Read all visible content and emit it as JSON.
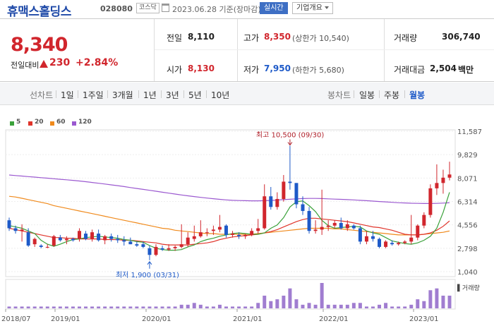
{
  "header": {
    "title": "휴맥스홀딩스",
    "code": "028080",
    "market": "코스닥",
    "date": "2023.06.28 기준(장마감)",
    "realtime_label": "실시간",
    "overview_label": "기업개요"
  },
  "price": {
    "current": "8,340",
    "change_label": "전일대비",
    "change": "230",
    "change_pct": "+2.84%"
  },
  "stats": {
    "prev_close_label": "전일",
    "prev_close": "8,110",
    "high_label": "고가",
    "high": "8,350",
    "upper_limit": "(상한가 10,540)",
    "volume_label": "거래량",
    "volume": "306,740",
    "open_label": "시가",
    "open": "8,130",
    "low_label": "저가",
    "low": "7,950",
    "lower_limit": "(하한가 5,680)",
    "amount_label": "거래대금",
    "amount": "2,504",
    "amount_unit": "백만"
  },
  "toolbar": {
    "line_chart_label": "선차트",
    "periods": [
      "1일",
      "1주일",
      "3개월",
      "1년",
      "3년",
      "5년",
      "10년"
    ],
    "candle_label": "봉차트",
    "candle_periods": [
      "일봉",
      "주봉",
      "월봉"
    ],
    "candle_selected": "월봉"
  },
  "colors": {
    "up": "#d1262d",
    "down": "#1e5ac8",
    "ma5": "#3aa13a",
    "ma20": "#e0352b",
    "ma60": "#f08a1c",
    "ma120": "#9b59d0",
    "volume": "#a07dd0"
  },
  "chart_data": {
    "type": "candlestick",
    "legend": [
      "5",
      "20",
      "60",
      "120"
    ],
    "y_ticks": [
      "11,587",
      "9,829",
      "8,071",
      "6,314",
      "4,556",
      "2,798",
      "1,040"
    ],
    "x_ticks": [
      "2018/07",
      "2019/01",
      "2020/01",
      "2021/01",
      "2022/01",
      "2023/01"
    ],
    "volume_label": "거래량",
    "high_annotation": "최고 10,500 (09/30)",
    "low_annotation": "최저 1,900 (03/31)",
    "candles": [
      {
        "o": 4900,
        "h": 5100,
        "l": 4100,
        "c": 4300
      },
      {
        "o": 4300,
        "h": 4500,
        "l": 3900,
        "c": 4100
      },
      {
        "o": 4100,
        "h": 4600,
        "l": 3300,
        "c": 4200
      },
      {
        "o": 4000,
        "h": 4300,
        "l": 2900,
        "c": 3000
      },
      {
        "o": 3100,
        "h": 3600,
        "l": 2900,
        "c": 3500
      },
      {
        "o": 3000,
        "h": 3100,
        "l": 2800,
        "c": 2900
      },
      {
        "o": 2900,
        "h": 3100,
        "l": 2800,
        "c": 2900
      },
      {
        "o": 3000,
        "h": 3800,
        "l": 2900,
        "c": 3700
      },
      {
        "o": 3600,
        "h": 3800,
        "l": 3300,
        "c": 3400
      },
      {
        "o": 3400,
        "h": 3700,
        "l": 3100,
        "c": 3500
      },
      {
        "o": 3500,
        "h": 3600,
        "l": 3300,
        "c": 3400
      },
      {
        "o": 3500,
        "h": 4300,
        "l": 3300,
        "c": 4100
      },
      {
        "o": 3900,
        "h": 4100,
        "l": 3400,
        "c": 3500
      },
      {
        "o": 3500,
        "h": 4200,
        "l": 3300,
        "c": 4000
      },
      {
        "o": 3900,
        "h": 4200,
        "l": 3300,
        "c": 3400
      },
      {
        "o": 3400,
        "h": 3800,
        "l": 3100,
        "c": 3700
      },
      {
        "o": 3700,
        "h": 3900,
        "l": 3300,
        "c": 3500
      },
      {
        "o": 3500,
        "h": 3800,
        "l": 3200,
        "c": 3400
      },
      {
        "o": 3400,
        "h": 3700,
        "l": 3000,
        "c": 3300
      },
      {
        "o": 3300,
        "h": 3600,
        "l": 3100,
        "c": 3100
      },
      {
        "o": 3100,
        "h": 3300,
        "l": 2900,
        "c": 3000
      },
      {
        "o": 3100,
        "h": 3300,
        "l": 2800,
        "c": 2900
      },
      {
        "o": 2800,
        "h": 3000,
        "l": 1900,
        "c": 2300
      },
      {
        "o": 2300,
        "h": 3100,
        "l": 2200,
        "c": 2900
      },
      {
        "o": 2800,
        "h": 3000,
        "l": 2600,
        "c": 2700
      },
      {
        "o": 2700,
        "h": 3100,
        "l": 2600,
        "c": 2800
      },
      {
        "o": 2800,
        "h": 3000,
        "l": 2600,
        "c": 2900
      },
      {
        "o": 2900,
        "h": 4600,
        "l": 2800,
        "c": 3100
      },
      {
        "o": 3100,
        "h": 4000,
        "l": 2900,
        "c": 3600
      },
      {
        "o": 3500,
        "h": 4500,
        "l": 3300,
        "c": 3700
      },
      {
        "o": 3700,
        "h": 4900,
        "l": 3600,
        "c": 4000
      },
      {
        "o": 4000,
        "h": 4300,
        "l": 3700,
        "c": 4000
      },
      {
        "o": 4100,
        "h": 4500,
        "l": 3800,
        "c": 4200
      },
      {
        "o": 4200,
        "h": 5300,
        "l": 4000,
        "c": 4400
      },
      {
        "o": 4500,
        "h": 4600,
        "l": 3600,
        "c": 3800
      },
      {
        "o": 3800,
        "h": 4100,
        "l": 3600,
        "c": 3900
      },
      {
        "o": 3800,
        "h": 4000,
        "l": 3500,
        "c": 3700
      },
      {
        "o": 3700,
        "h": 3900,
        "l": 3500,
        "c": 3800
      },
      {
        "o": 3800,
        "h": 4300,
        "l": 3700,
        "c": 4100
      },
      {
        "o": 4100,
        "h": 5000,
        "l": 3900,
        "c": 4300
      },
      {
        "o": 4300,
        "h": 7600,
        "l": 4200,
        "c": 6700
      },
      {
        "o": 6700,
        "h": 7400,
        "l": 5700,
        "c": 5900
      },
      {
        "o": 5900,
        "h": 7000,
        "l": 5700,
        "c": 6500
      },
      {
        "o": 6500,
        "h": 8300,
        "l": 6300,
        "c": 7800
      },
      {
        "o": 7800,
        "h": 10500,
        "l": 7200,
        "c": 7700
      },
      {
        "o": 7700,
        "h": 7700,
        "l": 5800,
        "c": 6100
      },
      {
        "o": 6100,
        "h": 6700,
        "l": 5300,
        "c": 5600
      },
      {
        "o": 5600,
        "h": 5900,
        "l": 3900,
        "c": 4100
      },
      {
        "o": 4100,
        "h": 4900,
        "l": 3900,
        "c": 4200
      },
      {
        "o": 4200,
        "h": 7200,
        "l": 3800,
        "c": 4400
      },
      {
        "o": 4400,
        "h": 4900,
        "l": 4100,
        "c": 4500
      },
      {
        "o": 4500,
        "h": 4900,
        "l": 4300,
        "c": 4700
      },
      {
        "o": 4700,
        "h": 5100,
        "l": 4200,
        "c": 4300
      },
      {
        "o": 4300,
        "h": 4900,
        "l": 4100,
        "c": 4600
      },
      {
        "o": 4500,
        "h": 4600,
        "l": 4200,
        "c": 4300
      },
      {
        "o": 4300,
        "h": 4500,
        "l": 3100,
        "c": 3300
      },
      {
        "o": 3300,
        "h": 4100,
        "l": 3100,
        "c": 3700
      },
      {
        "o": 3700,
        "h": 4100,
        "l": 3300,
        "c": 3500
      },
      {
        "o": 3500,
        "h": 3600,
        "l": 2800,
        "c": 2900
      },
      {
        "o": 2900,
        "h": 3400,
        "l": 2800,
        "c": 3300
      },
      {
        "o": 3200,
        "h": 3400,
        "l": 3000,
        "c": 3100
      },
      {
        "o": 3100,
        "h": 3300,
        "l": 3000,
        "c": 3200
      },
      {
        "o": 3200,
        "h": 3400,
        "l": 3100,
        "c": 3300
      },
      {
        "o": 3300,
        "h": 5300,
        "l": 3100,
        "c": 3600
      },
      {
        "o": 3600,
        "h": 4600,
        "l": 3400,
        "c": 4500
      },
      {
        "o": 4500,
        "h": 5500,
        "l": 4300,
        "c": 5300
      },
      {
        "o": 5300,
        "h": 7600,
        "l": 5100,
        "c": 7300
      },
      {
        "o": 7300,
        "h": 9100,
        "l": 6800,
        "c": 7700
      },
      {
        "o": 7700,
        "h": 8700,
        "l": 6900,
        "c": 8100
      },
      {
        "o": 8100,
        "h": 9300,
        "l": 7900,
        "c": 8340
      }
    ],
    "volume": [
      1,
      1,
      1,
      1,
      1,
      1,
      1,
      1,
      1,
      1,
      1,
      1,
      1,
      1,
      1,
      1,
      1,
      1,
      1,
      1,
      1,
      1,
      1,
      1,
      1,
      1,
      1,
      2,
      2,
      3,
      2,
      1,
      1,
      2,
      1,
      1,
      1,
      1,
      1,
      3,
      7,
      4,
      5,
      7,
      11,
      5,
      2,
      3,
      2,
      14,
      2,
      2,
      2,
      2,
      3,
      3,
      1,
      1,
      2,
      3,
      1,
      1,
      1,
      2,
      5,
      4,
      10,
      11,
      7,
      7
    ],
    "ma5": [
      4500,
      4400,
      4300,
      4100,
      3900,
      3400,
      3100,
      2950,
      3100,
      3300,
      3450,
      3500,
      3600,
      3650,
      3700,
      3650,
      3600,
      3550,
      3450,
      3400,
      3300,
      3250,
      3000,
      2800,
      2700,
      2650,
      2650,
      2700,
      2900,
      3050,
      3300,
      3450,
      3550,
      3700,
      3800,
      3900,
      3950,
      3900,
      3850,
      3850,
      3950,
      4300,
      4550,
      5100,
      5900,
      6300,
      6350,
      6000,
      5550,
      4900,
      4500,
      4300,
      4350,
      4400,
      4450,
      4400,
      4100,
      3950,
      3850,
      3600,
      3350,
      3250,
      3150,
      3100,
      3200,
      3400,
      3700,
      4300,
      5500,
      7000
    ],
    "ma20": [
      4300,
      4200,
      4100,
      4000,
      3900,
      3800,
      3700,
      3600,
      3600,
      3550,
      3550,
      3500,
      3500,
      3500,
      3500,
      3450,
      3450,
      3450,
      3400,
      3400,
      3350,
      3300,
      3250,
      3200,
      3100,
      3050,
      3050,
      3050,
      3050,
      3100,
      3150,
      3200,
      3300,
      3450,
      3550,
      3650,
      3700,
      3750,
      3800,
      3850,
      3950,
      4050,
      4200,
      4400,
      4600,
      4800,
      4950,
      5050,
      5050,
      5000,
      4950,
      4900,
      4850,
      4800,
      4700,
      4600,
      4500,
      4400,
      4350,
      4250,
      4150,
      4000,
      3850,
      3800,
      3800,
      3850,
      3950,
      4150,
      4450,
      4850
    ],
    "ma60": [
      6700,
      6650,
      6550,
      6450,
      6350,
      6250,
      6150,
      6000,
      5900,
      5800,
      5700,
      5600,
      5500,
      5400,
      5300,
      5200,
      5100,
      5000,
      4900,
      4800,
      4700,
      4600,
      4500,
      4400,
      4300,
      4250,
      4150,
      4100,
      4050,
      4000,
      3950,
      3900,
      3900,
      3850,
      3850,
      3850,
      3850,
      3850,
      3850,
      3900,
      3950,
      4000,
      4050,
      4100,
      4150,
      4200,
      4250,
      4300,
      4300,
      4300,
      4300,
      4250,
      4250,
      4200,
      4150,
      4100,
      4050,
      4000,
      3950,
      3900,
      3850,
      3800,
      3800,
      3800,
      3800,
      3850,
      3900,
      3950,
      4000,
      4100
    ],
    "ma120": [
      8300,
      8260,
      8220,
      8180,
      8140,
      8100,
      8060,
      8020,
      7980,
      7940,
      7900,
      7850,
      7800,
      7740,
      7680,
      7620,
      7560,
      7500,
      7430,
      7360,
      7290,
      7220,
      7150,
      7080,
      7010,
      6940,
      6870,
      6800,
      6740,
      6680,
      6620,
      6570,
      6520,
      6470,
      6430,
      6400,
      6380,
      6370,
      6360,
      6360,
      6370,
      6390,
      6420,
      6450,
      6480,
      6510,
      6530,
      6540,
      6540,
      6530,
      6510,
      6490,
      6470,
      6450,
      6430,
      6400,
      6370,
      6340,
      6310,
      6280,
      6250,
      6220,
      6200,
      6180,
      6170,
      6160,
      6160,
      6170,
      6190,
      6220
    ]
  }
}
